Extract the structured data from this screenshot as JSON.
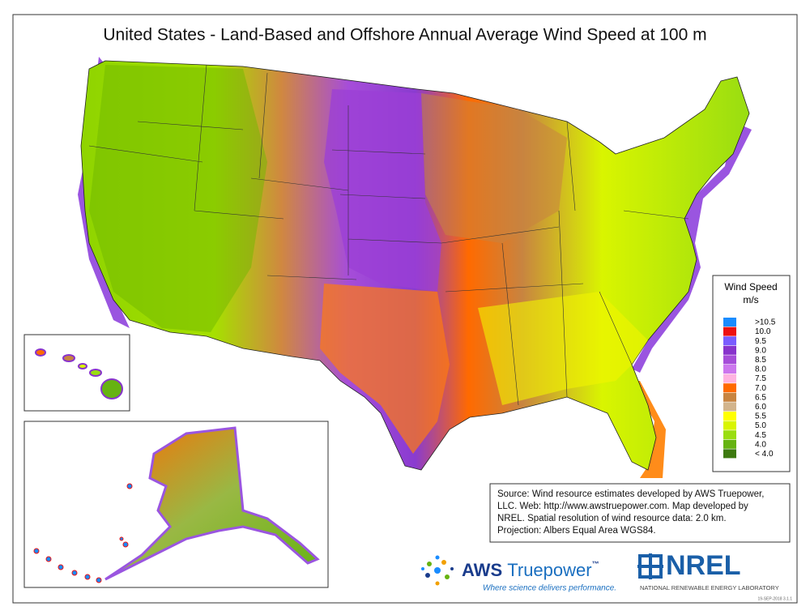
{
  "title": "United States - Land-Based and Offshore Annual Average Wind Speed at 100 m",
  "legend": {
    "title": "Wind Speed",
    "unit": "m/s",
    "entries": [
      {
        "label": ">10.5",
        "color": "#1a8cff"
      },
      {
        "label": "10.0",
        "color": "#ee1111"
      },
      {
        "label": "9.5",
        "color": "#7a5cff"
      },
      {
        "label": "9.0",
        "color": "#8833cc"
      },
      {
        "label": "8.5",
        "color": "#a64dd9"
      },
      {
        "label": "8.0",
        "color": "#cc77ee"
      },
      {
        "label": "7.5",
        "color": "#ffb3e0"
      },
      {
        "label": "7.0",
        "color": "#ff6a00"
      },
      {
        "label": "6.5",
        "color": "#c88440"
      },
      {
        "label": "6.0",
        "color": "#d2b48c"
      },
      {
        "label": "5.5",
        "color": "#ffff00"
      },
      {
        "label": "5.0",
        "color": "#d9f500"
      },
      {
        "label": "4.5",
        "color": "#99dd11"
      },
      {
        "label": "4.0",
        "color": "#66b311"
      },
      {
        "label": "< 4.0",
        "color": "#3d7a0f"
      }
    ]
  },
  "source": {
    "lines": [
      "Source: Wind resource estimates developed by AWS Truepower,",
      "LLC.  Web: http://www.awstruepower.com. Map developed by",
      "NREL.  Spatial resolution of wind resource data: 2.0 km.",
      "Projection: Albers Equal Area WGS84."
    ]
  },
  "logos": {
    "aws_name_1": "AWS",
    "aws_name_2": "Truepower",
    "aws_tm": "™",
    "aws_tagline": "Where science delivers performance.",
    "nrel_name": "NREL",
    "nrel_full": "NATIONAL RENEWABLE ENERGY LABORATORY",
    "code": "19-SEP-2018 3.1.1"
  }
}
